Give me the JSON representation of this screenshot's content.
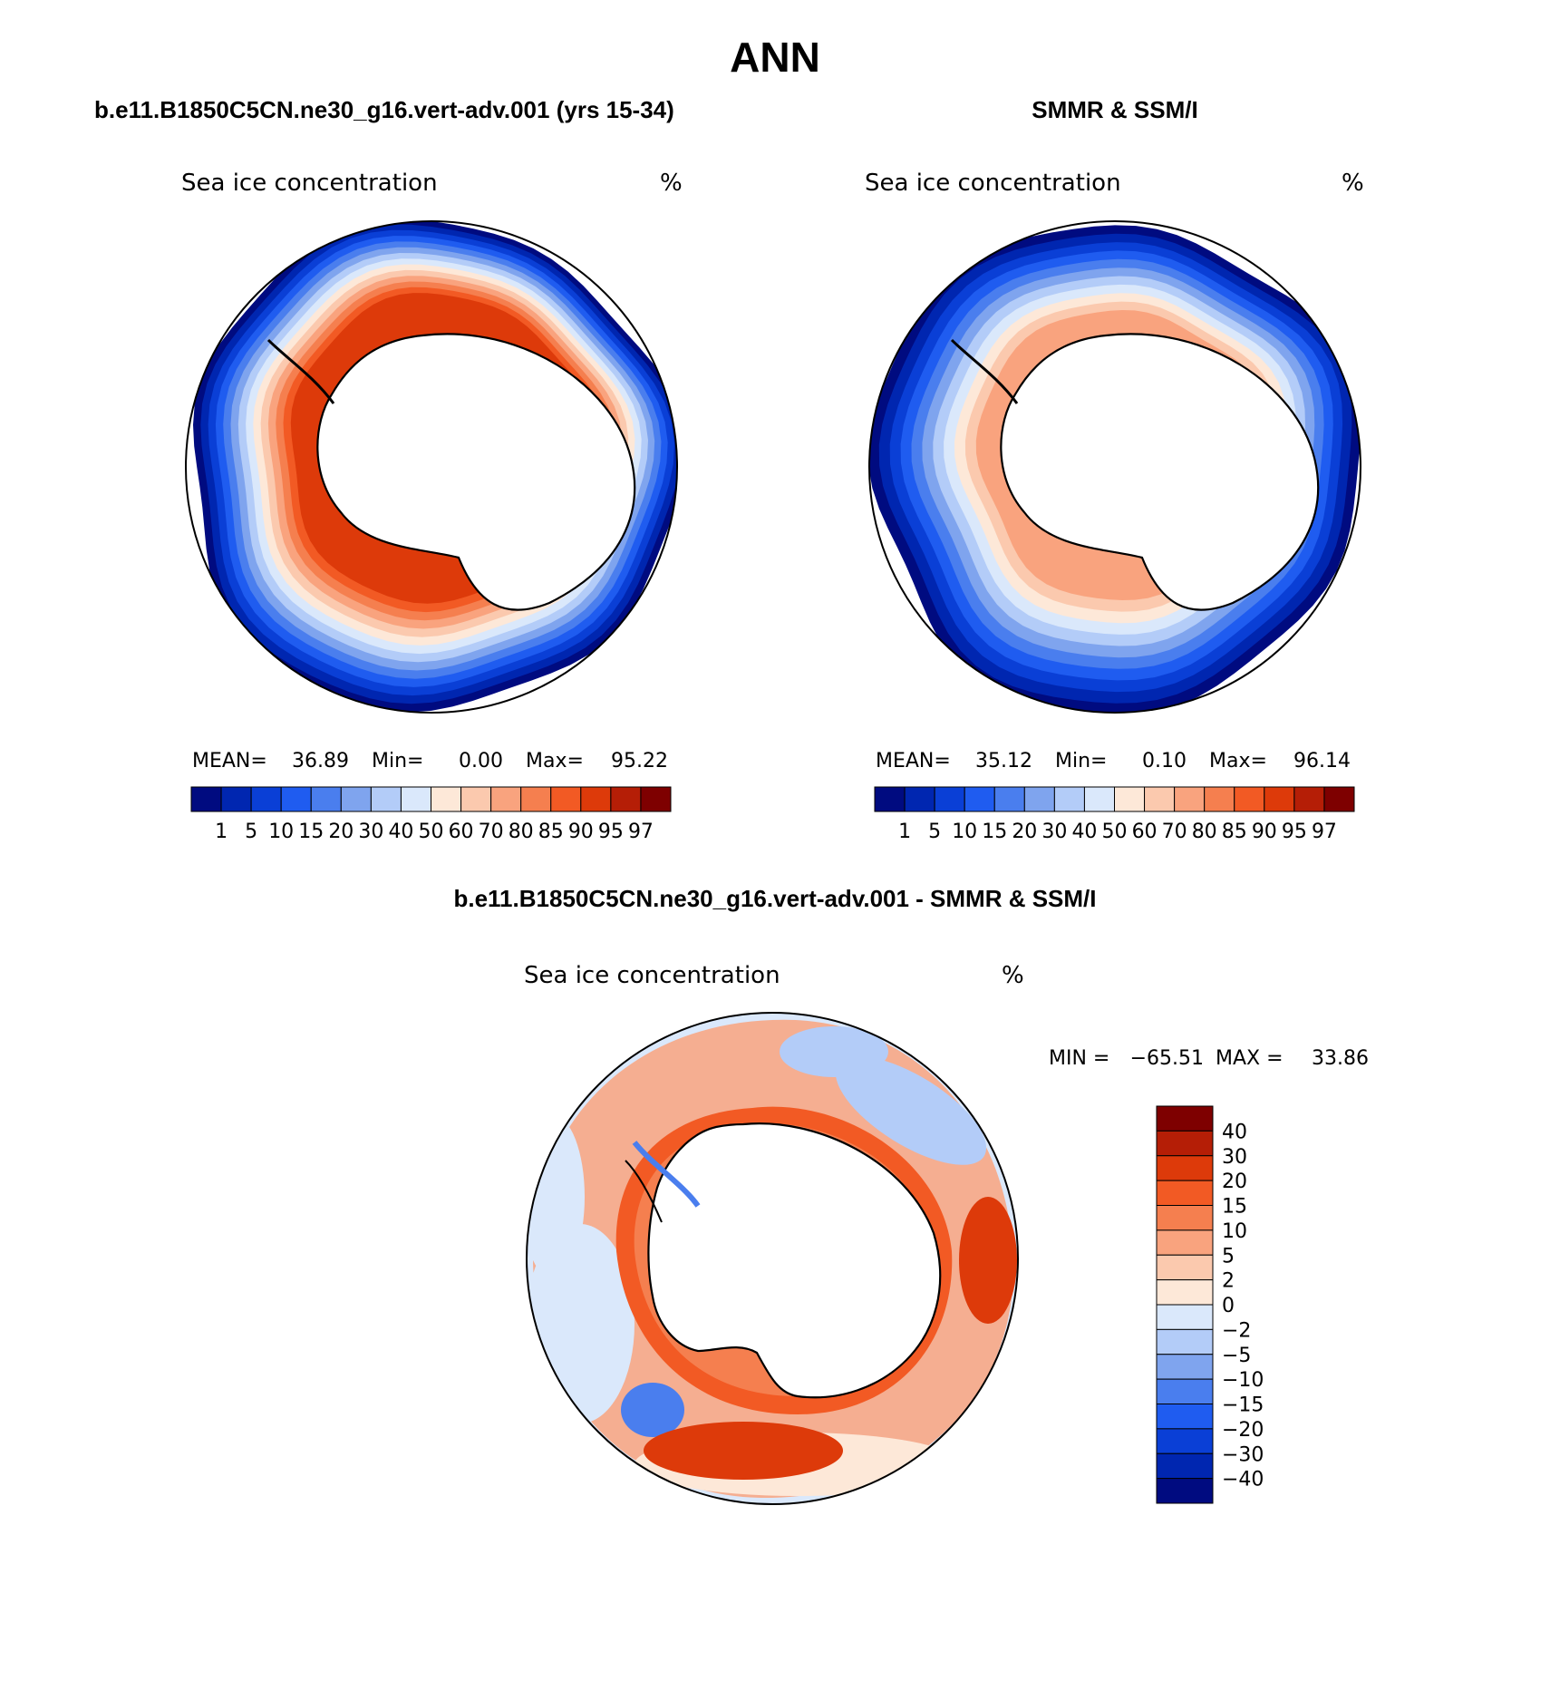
{
  "figure": {
    "title": "ANN",
    "panels": [
      {
        "case_title": "b.e11.B1850C5CN.ne30_g16.vert-adv.001 (yrs 15-34)",
        "variable": "Sea ice concentration",
        "units": "%",
        "stats": {
          "mean_label": "MEAN=",
          "mean": "36.89",
          "min_label": "Min=",
          "min": "0.00",
          "max_label": "Max=",
          "max": "95.22"
        }
      },
      {
        "case_title": "SMMR & SSM/I",
        "variable": "Sea ice concentration",
        "units": "%",
        "stats": {
          "mean_label": "MEAN=",
          "mean": "35.12",
          "min_label": "Min=",
          "min": "0.10",
          "max_label": "Max=",
          "max": "96.14"
        }
      }
    ],
    "diff_panel": {
      "case_title": "b.e11.B1850C5CN.ne30_g16.vert-adv.001 - SMMR & SSM/I",
      "variable": "Sea ice concentration",
      "units": "%",
      "minmax": {
        "min_label": "MIN =",
        "min": "−65.51",
        "max_label": "MAX =",
        "max": "33.86"
      }
    }
  },
  "colorbars": {
    "concentration": {
      "colors": [
        "#000b80",
        "#0026b0",
        "#0a3fd6",
        "#1f5cf0",
        "#4a7eee",
        "#7fa4ee",
        "#b3ccf8",
        "#dae8fb",
        "#fde8d8",
        "#fbc9ae",
        "#f9a37e",
        "#f57f4f",
        "#f25a24",
        "#dd3a0a",
        "#b51e06",
        "#7e0000"
      ],
      "labels": [
        "1",
        "5",
        "10",
        "15",
        "20",
        "30",
        "40",
        "50",
        "60",
        "70",
        "80",
        "85",
        "90",
        "95",
        "97"
      ]
    },
    "difference": {
      "colors_top_to_bottom": [
        "#7e0000",
        "#b51e06",
        "#dd3a0a",
        "#f25a24",
        "#f57f4f",
        "#f9a37e",
        "#fbc9ae",
        "#fde8d8",
        "#dae8fb",
        "#b3ccf8",
        "#7fa4ee",
        "#4a7eee",
        "#1f5cf0",
        "#0a3fd6",
        "#0026b0",
        "#000b80"
      ],
      "labels_top_to_bottom": [
        "40",
        "30",
        "20",
        "15",
        "10",
        "5",
        "2",
        "0",
        "−2",
        "−5",
        "−10",
        "−15",
        "−20",
        "−30",
        "−40"
      ]
    }
  },
  "map_fields": {
    "model": {
      "bands": [
        {
          "level": "1",
          "color": "#000b80"
        },
        {
          "level": "5",
          "color": "#0026b0"
        },
        {
          "level": "10",
          "color": "#0a3fd6"
        },
        {
          "level": "15",
          "color": "#1f5cf0"
        },
        {
          "level": "20",
          "color": "#4a7eee"
        },
        {
          "level": "30",
          "color": "#7fa4ee"
        },
        {
          "level": "40",
          "color": "#b3ccf8"
        },
        {
          "level": "50",
          "color": "#dae8fb"
        },
        {
          "level": "60",
          "color": "#fde8d8"
        },
        {
          "level": "70",
          "color": "#fbc9ae"
        },
        {
          "level": "80",
          "color": "#f9a37e"
        },
        {
          "level": "85",
          "color": "#f57f4f"
        },
        {
          "level": "90",
          "color": "#f25a24"
        },
        {
          "level": "95",
          "color": "#dd3a0a"
        }
      ]
    },
    "obs": {
      "bands": [
        {
          "level": "1",
          "color": "#000b80"
        },
        {
          "level": "5",
          "color": "#0026b0"
        },
        {
          "level": "10",
          "color": "#0a3fd6"
        },
        {
          "level": "15",
          "color": "#1f5cf0"
        },
        {
          "level": "20",
          "color": "#4a7eee"
        },
        {
          "level": "30",
          "color": "#7fa4ee"
        },
        {
          "level": "40",
          "color": "#b3ccf8"
        },
        {
          "level": "50",
          "color": "#dae8fb"
        },
        {
          "level": "60",
          "color": "#fde8d8"
        },
        {
          "level": "70",
          "color": "#fbc9ae"
        },
        {
          "level": "80",
          "color": "#f9a37e"
        }
      ]
    }
  }
}
